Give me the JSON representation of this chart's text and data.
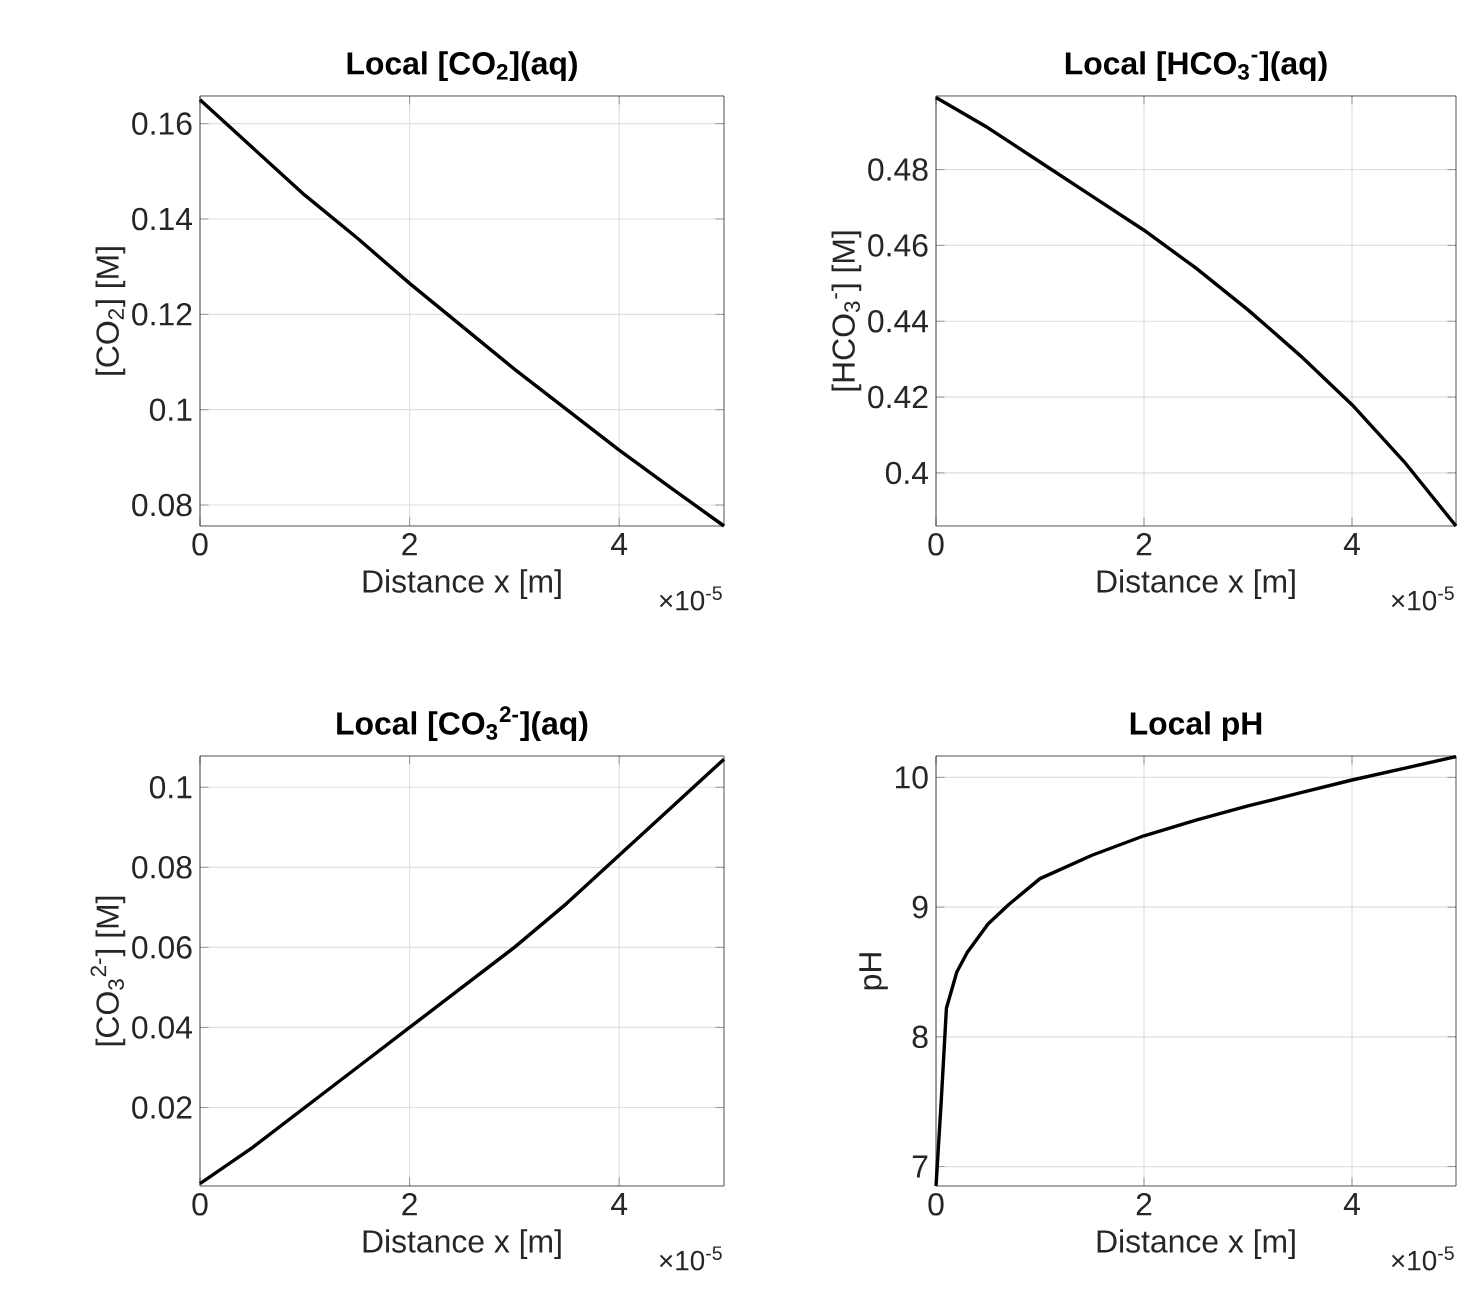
{
  "chart_data": [
    {
      "type": "line",
      "title": "Local [CO$_{2}$](aq)",
      "xlabel": "Distance x [m]",
      "ylabel": "[CO$_{2}$] [M]",
      "color": "#000000",
      "grid": true,
      "xlim": [
        0,
        5
      ],
      "ylim": [
        0.0756,
        0.1658
      ],
      "xticks": [
        0,
        2,
        4
      ],
      "yticks": [
        0.08,
        0.1,
        0.12,
        0.14,
        0.16
      ],
      "annotations": [
        "×10$^{-5}$"
      ],
      "x": [
        0,
        0.5,
        1,
        1.5,
        2,
        2.5,
        3,
        3.5,
        4,
        4.5,
        5
      ],
      "values": [
        0.165,
        0.155,
        0.145,
        0.136,
        0.1265,
        0.1175,
        0.1085,
        0.1,
        0.0915,
        0.0835,
        0.0756
      ]
    },
    {
      "type": "line",
      "title": "Local [HCO$_{3}$$^{-}$](aq)",
      "xlabel": "Distance x [m]",
      "ylabel": "[HCO$_{3}$$^{-}$] [M]",
      "color": "#000000",
      "grid": true,
      "xlim": [
        0,
        5
      ],
      "ylim": [
        0.386,
        0.4994
      ],
      "xticks": [
        0,
        2,
        4
      ],
      "yticks": [
        0.4,
        0.42,
        0.44,
        0.46,
        0.48
      ],
      "annotations": [
        "×10$^{-5}$"
      ],
      "x": [
        0,
        0.5,
        1,
        1.5,
        2,
        2.5,
        3,
        3.5,
        4,
        4.5,
        5
      ],
      "values": [
        0.499,
        0.491,
        0.482,
        0.473,
        0.464,
        0.454,
        0.443,
        0.431,
        0.418,
        0.403,
        0.386
      ]
    },
    {
      "type": "line",
      "title": "Local [CO$_{3}$$^{2-}$](aq)",
      "xlabel": "Distance x [m]",
      "ylabel": "[CO$_{3}$$^{2-}$] [M]",
      "color": "#000000",
      "grid": true,
      "xlim": [
        0,
        5
      ],
      "ylim": [
        0.0004,
        0.1078
      ],
      "xticks": [
        0,
        2,
        4
      ],
      "yticks": [
        0.02,
        0.04,
        0.06,
        0.08,
        0.1
      ],
      "annotations": [
        "×10$^{-5}$"
      ],
      "x": [
        0,
        0.5,
        1,
        1.5,
        2,
        2.5,
        3,
        3.5,
        4,
        4.5,
        5
      ],
      "values": [
        0.001,
        0.01,
        0.02,
        0.03,
        0.04,
        0.05,
        0.06,
        0.071,
        0.083,
        0.095,
        0.107
      ]
    },
    {
      "type": "line",
      "title": "Local pH",
      "xlabel": "Distance x [m]",
      "ylabel": "pH",
      "color": "#000000",
      "grid": true,
      "xlim": [
        0,
        5
      ],
      "ylim": [
        6.85,
        10.165
      ],
      "xticks": [
        0,
        2,
        4
      ],
      "yticks": [
        7,
        8,
        9,
        10
      ],
      "annotations": [
        "×10$^{-5}$"
      ],
      "x": [
        0,
        0.05,
        0.1,
        0.2,
        0.3,
        0.5,
        0.7,
        1,
        1.5,
        2,
        2.5,
        3,
        3.5,
        4,
        4.5,
        5
      ],
      "values": [
        6.85,
        7.5,
        8.22,
        8.5,
        8.65,
        8.87,
        9.02,
        9.22,
        9.4,
        9.55,
        9.67,
        9.78,
        9.88,
        9.98,
        10.07,
        10.16
      ]
    }
  ]
}
